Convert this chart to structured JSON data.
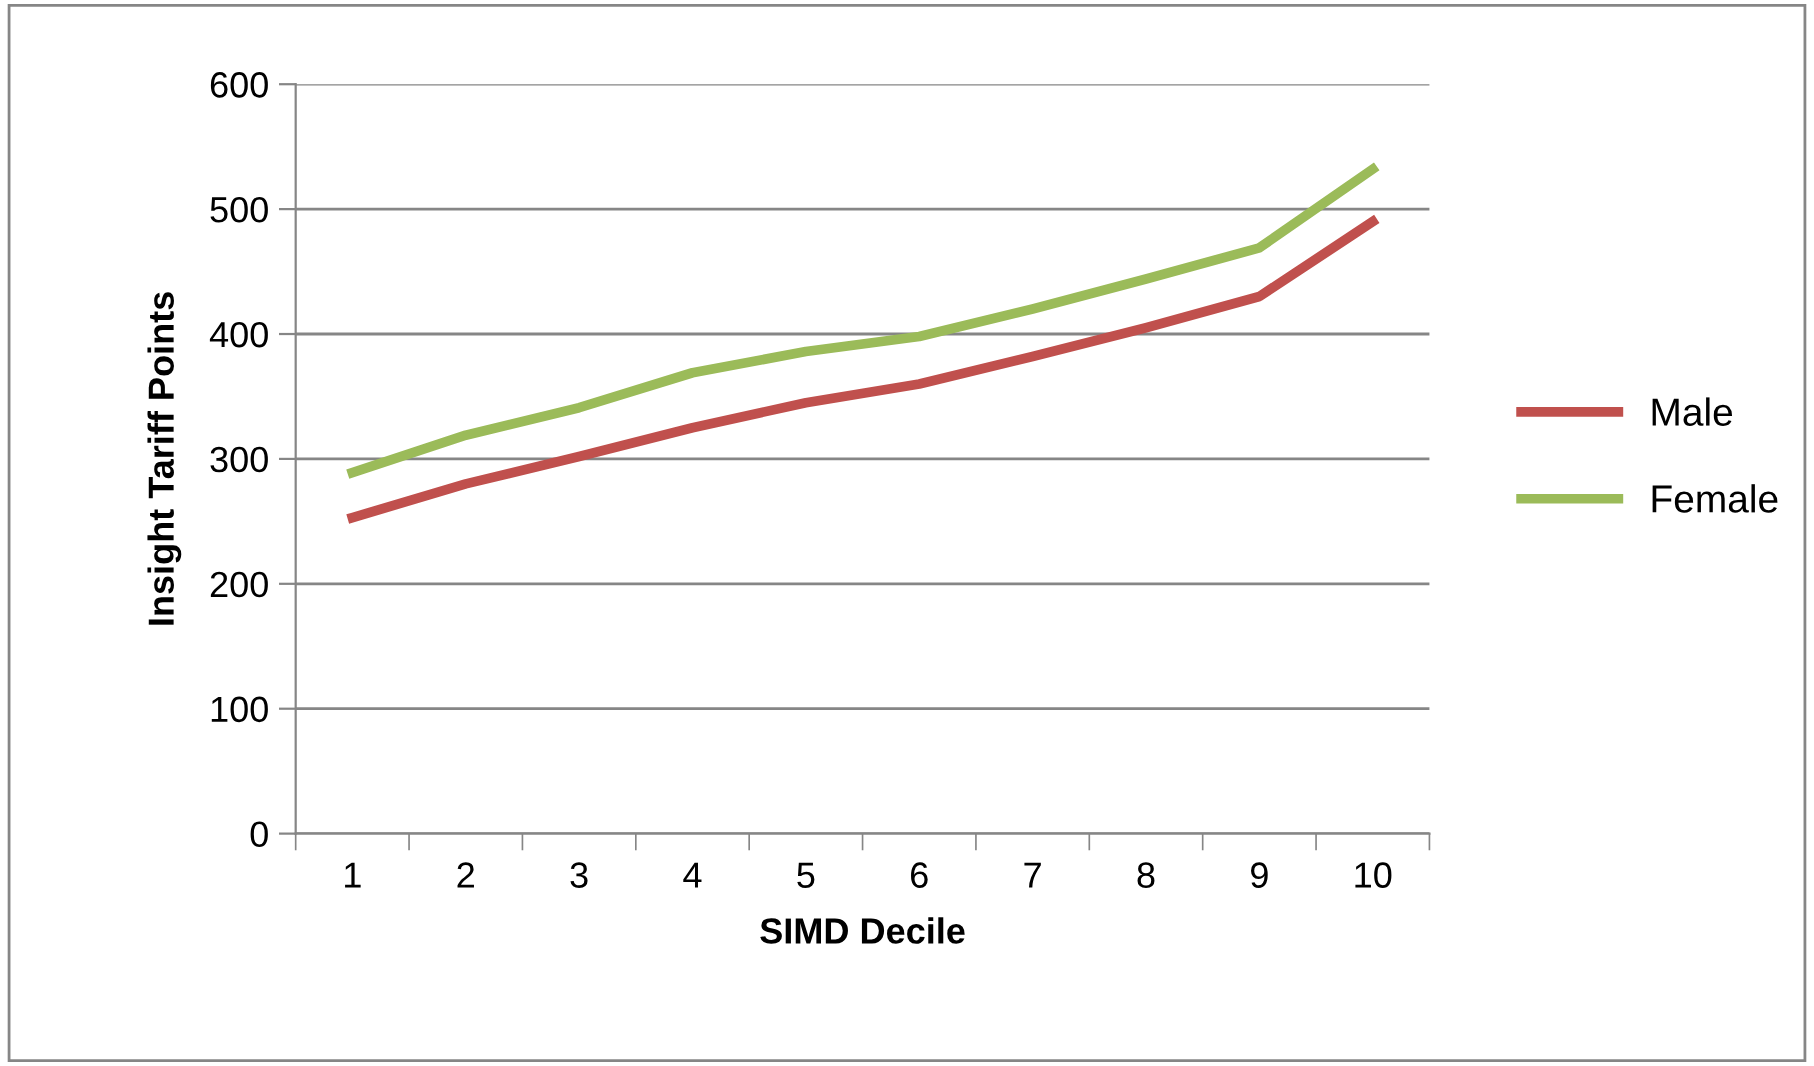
{
  "chart_data": {
    "type": "line",
    "xlabel": "SIMD Decile",
    "ylabel": "Insight Tariff Points",
    "categories": [
      "1",
      "2",
      "3",
      "4",
      "5",
      "6",
      "7",
      "8",
      "9",
      "10"
    ],
    "series": [
      {
        "name": "Male",
        "color": "#c0504d",
        "values": [
          253,
          280,
          302,
          325,
          345,
          360,
          382,
          405,
          430,
          490
        ]
      },
      {
        "name": "Female",
        "color": "#9bbb59",
        "values": [
          289,
          319,
          341,
          369,
          386,
          398,
          420,
          444,
          469,
          532
        ]
      }
    ],
    "ylim": [
      0,
      600
    ],
    "yticks": [
      0,
      100,
      200,
      300,
      400,
      500,
      600
    ],
    "grid": "y",
    "legend": "right",
    "marker": "none",
    "line_style": "solid"
  }
}
